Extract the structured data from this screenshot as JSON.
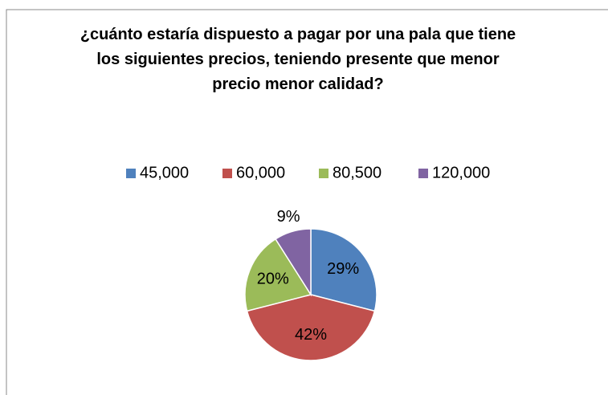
{
  "chart_data": {
    "type": "pie",
    "title": "¿cuánto estaría dispuesto a pagar por una pala que tiene los siguientes precios, teniendo presente que menor precio menor calidad?",
    "categories": [
      "45,000",
      "60,000",
      "80,500",
      "120,000"
    ],
    "values": [
      29,
      42,
      20,
      9
    ],
    "value_labels": [
      "29%",
      "42%",
      "20%",
      "9%"
    ],
    "colors": [
      "#4f81bd",
      "#c0504d",
      "#9bbb59",
      "#8064a2"
    ],
    "legend": "top"
  }
}
